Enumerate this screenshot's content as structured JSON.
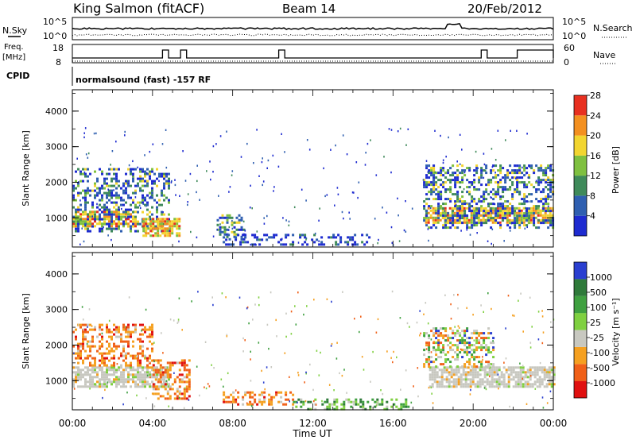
{
  "header": {
    "station": "King Salmon (fitACF)",
    "beam": "Beam 14",
    "date": "20/Feb/2012"
  },
  "noise_panel": {
    "left_label": "N.Sky",
    "right_label": "N.Search",
    "left_ticks": [
      "10^5",
      "10^0"
    ],
    "right_ticks": [
      "10^5",
      "10^0"
    ]
  },
  "freq_panel": {
    "left_label_1": "Freq.",
    "left_label_2": "[MHz]",
    "right_label": "Nave",
    "left_ticks": [
      "18",
      "8"
    ],
    "right_ticks": [
      "60",
      "0"
    ]
  },
  "cpid": {
    "label": "CPID",
    "text": "normalsound (fast) -157 RF"
  },
  "x_axis": {
    "label": "Time UT",
    "ticks": [
      "00:00",
      "04:00",
      "08:00",
      "12:00",
      "16:00",
      "20:00",
      "00:00"
    ]
  },
  "chart_data": [
    {
      "type": "heatmap",
      "name": "power",
      "xlabel": "Time UT",
      "ylabel": "Slant Range [km]",
      "xlim": [
        0,
        24
      ],
      "ylim": [
        180,
        4600
      ],
      "y_ticks": [
        1000,
        2000,
        3000,
        4000
      ],
      "colorbar": {
        "label": "Power [dB]",
        "ticks": [
          "4",
          "8",
          "12",
          "16",
          "20",
          "24",
          "28"
        ],
        "colors": [
          "#1e2bd0",
          "#2f5fb0",
          "#3f8a5a",
          "#7fc040",
          "#f2d530",
          "#f39020",
          "#e83020"
        ]
      },
      "echo_regions": [
        {
          "t0": 0.0,
          "t1": 3.2,
          "r0": 750,
          "r1": 1200,
          "level": "high"
        },
        {
          "t0": 0.0,
          "t1": 4.8,
          "r0": 600,
          "r1": 2400,
          "level": "medium"
        },
        {
          "t0": 3.5,
          "t1": 5.4,
          "r0": 500,
          "r1": 1000,
          "level": "high"
        },
        {
          "t0": 7.2,
          "t1": 8.6,
          "r0": 400,
          "r1": 1100,
          "level": "medium"
        },
        {
          "t0": 7.5,
          "t1": 14.8,
          "r0": 250,
          "r1": 550,
          "level": "low"
        },
        {
          "t0": 17.6,
          "t1": 24.0,
          "r0": 850,
          "r1": 1300,
          "level": "high"
        },
        {
          "t0": 17.5,
          "t1": 24.0,
          "r0": 700,
          "r1": 2500,
          "level": "medium"
        }
      ]
    },
    {
      "type": "heatmap",
      "name": "velocity",
      "xlabel": "Time UT",
      "ylabel": "Slant Range [km]",
      "xlim": [
        0,
        24
      ],
      "ylim": [
        180,
        4600
      ],
      "y_ticks": [
        1000,
        2000,
        3000,
        4000
      ],
      "colorbar": {
        "label": "Velocity [m s⁻¹]",
        "ticks": [
          "1000",
          "500",
          "100",
          "25",
          "-25",
          "-100",
          "-500",
          "-1000"
        ],
        "colors": [
          "#2a3fd0",
          "#2f7a3a",
          "#3fa040",
          "#7fd040",
          "#c8c8c0",
          "#f5a020",
          "#f06018",
          "#e01010"
        ]
      },
      "echo_regions": [
        {
          "t0": 0.0,
          "t1": 4.8,
          "r0": 800,
          "r1": 1400,
          "level": "ground"
        },
        {
          "t0": 0.0,
          "t1": 4.0,
          "r0": 1400,
          "r1": 2600,
          "level": "negative"
        },
        {
          "t0": 4.0,
          "t1": 5.8,
          "r0": 500,
          "r1": 1600,
          "level": "negative"
        },
        {
          "t0": 7.5,
          "t1": 11.0,
          "r0": 300,
          "r1": 700,
          "level": "negative"
        },
        {
          "t0": 11.0,
          "t1": 16.8,
          "r0": 200,
          "r1": 500,
          "level": "positive"
        },
        {
          "t0": 17.8,
          "t1": 24.0,
          "r0": 800,
          "r1": 1400,
          "level": "ground"
        },
        {
          "t0": 17.5,
          "t1": 21.0,
          "r0": 1400,
          "r1": 2500,
          "level": "mixed"
        }
      ]
    }
  ]
}
